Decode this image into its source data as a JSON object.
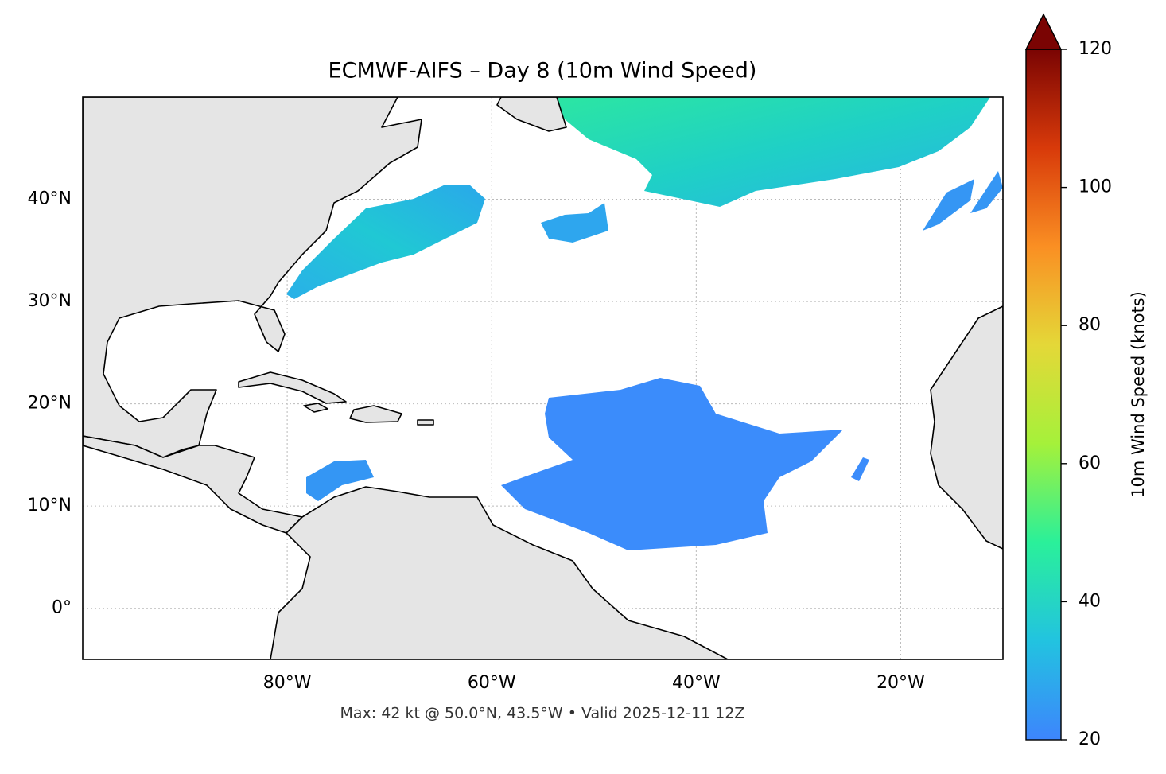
{
  "chart_data": {
    "type": "map",
    "title": "ECMWF-AIFS – Day 8 (10m Wind Speed)",
    "caption": "Max: 42 kt @ 50.0°N, 43.5°W • Valid 2025-12-11 12Z",
    "xlim": [
      -100,
      -10
    ],
    "ylim": [
      -5,
      50
    ],
    "xticks": [
      {
        "value": -80,
        "label": "80°W"
      },
      {
        "value": -60,
        "label": "60°W"
      },
      {
        "value": -40,
        "label": "40°W"
      },
      {
        "value": -20,
        "label": "20°W"
      }
    ],
    "yticks": [
      {
        "value": 0,
        "label": "0°"
      },
      {
        "value": 10,
        "label": "10°N"
      },
      {
        "value": 20,
        "label": "20°N"
      },
      {
        "value": 30,
        "label": "30°N"
      },
      {
        "value": 40,
        "label": "40°N"
      }
    ],
    "grid": true,
    "colorbar": {
      "label": "10m Wind Speed (knots)",
      "lim": [
        20,
        120
      ],
      "ticks": [
        20,
        40,
        60,
        80,
        100,
        120
      ],
      "colors": [
        "#3d85fd",
        "#22c3e0",
        "#2af09a",
        "#a5f13a",
        "#e4d838",
        "#fa8f23",
        "#d83a0a",
        "#7a0403"
      ]
    }
  }
}
